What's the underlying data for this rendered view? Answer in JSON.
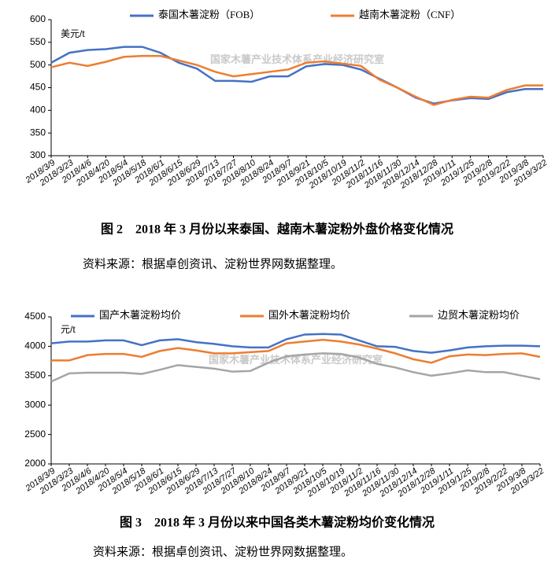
{
  "chart_data": [
    {
      "type": "line",
      "title": "图 2　2018 年 3 月份以来泰国、越南木薯淀粉外盘价格变化情况",
      "source": "资料来源：根据卓创资讯、淀粉世界网数据整理。",
      "y_label": "美元/t",
      "annotation": "国家木薯产业技术体系产业经济研究室",
      "categories": [
        "2018/3/9",
        "2018/3/23",
        "2018/4/6",
        "2018/4/20",
        "2018/5/4",
        "2018/5/18",
        "2018/6/1",
        "2018/6/15",
        "2018/6/29",
        "2018/7/13",
        "2018/7/27",
        "2018/8/10",
        "2018/8/24",
        "2018/9/7",
        "2018/9/21",
        "2018/10/5",
        "2018/10/19",
        "2018/11/2",
        "2018/11/16",
        "2018/11/30",
        "2018/12/14",
        "2018/12/28",
        "2019/1/11",
        "2019/1/25",
        "2019/2/8",
        "2019/2/22",
        "2019/3/8",
        "2019/3/22"
      ],
      "series": [
        {
          "name": "泰国木薯淀粉（FOB）",
          "color": "#4472c4",
          "values": [
            505,
            527,
            533,
            535,
            540,
            540,
            527,
            505,
            492,
            465,
            465,
            463,
            475,
            475,
            497,
            502,
            500,
            490,
            470,
            450,
            428,
            415,
            422,
            427,
            425,
            440,
            447,
            447
          ]
        },
        {
          "name": "越南木薯淀粉（CNF）",
          "color": "#ed7d31",
          "values": [
            495,
            505,
            498,
            507,
            518,
            520,
            520,
            510,
            500,
            485,
            475,
            480,
            485,
            490,
            505,
            508,
            503,
            498,
            468,
            450,
            430,
            412,
            423,
            430,
            428,
            445,
            455,
            455
          ]
        }
      ],
      "ylim": [
        300,
        600
      ],
      "yticks": [
        300,
        350,
        400,
        450,
        500,
        550,
        600
      ],
      "legend": "top"
    },
    {
      "type": "line",
      "title": "图 3　2018 年 3 月份以来中国各类木薯淀粉均价变化情况",
      "source": "资料来源：根据卓创资讯、淀粉世界网数据整理。",
      "y_label": "元/t",
      "annotation": "国家木薯产业技术体系产业经济研究室",
      "categories": [
        "2018/3/9",
        "2018/3/23",
        "2018/4/6",
        "2018/4/20",
        "2018/5/4",
        "2018/5/18",
        "2018/6/1",
        "2018/6/15",
        "2018/6/29",
        "2018/7/13",
        "2018/7/27",
        "2018/8/10",
        "2018/8/24",
        "2018/9/7",
        "2018/9/21",
        "2018/10/5",
        "2018/10/19",
        "2018/11/2",
        "2018/11/16",
        "2018/11/30",
        "2018/12/14",
        "2018/12/28",
        "2019/1/11",
        "2019/1/25",
        "2019/2/8",
        "2019/2/22",
        "2019/3/8",
        "2019/3/22"
      ],
      "series": [
        {
          "name": "国产木薯淀粉均价",
          "color": "#4472c4",
          "values": [
            4050,
            4080,
            4080,
            4100,
            4100,
            4020,
            4100,
            4120,
            4070,
            4040,
            4000,
            3980,
            3980,
            4120,
            4200,
            4210,
            4200,
            4100,
            4000,
            3990,
            3920,
            3890,
            3930,
            3980,
            4000,
            4010,
            4010,
            4000
          ]
        },
        {
          "name": "国外木薯淀粉均价",
          "color": "#ed7d31",
          "values": [
            3760,
            3760,
            3850,
            3870,
            3870,
            3820,
            3920,
            3970,
            3930,
            3880,
            3880,
            3900,
            3920,
            4050,
            4080,
            4110,
            4080,
            4030,
            3960,
            3880,
            3780,
            3720,
            3830,
            3860,
            3850,
            3870,
            3880,
            3820
          ]
        },
        {
          "name": "边贸木薯淀粉均价",
          "color": "#a5a5a5",
          "values": [
            3400,
            3540,
            3550,
            3550,
            3550,
            3530,
            3600,
            3680,
            3650,
            3620,
            3570,
            3580,
            3720,
            3830,
            3860,
            3880,
            3870,
            3810,
            3700,
            3640,
            3560,
            3500,
            3540,
            3590,
            3560,
            3560,
            3500,
            3440
          ]
        }
      ],
      "ylim": [
        2000,
        4500
      ],
      "yticks": [
        2000,
        2500,
        3000,
        3500,
        4000,
        4500
      ],
      "legend": "top"
    }
  ]
}
